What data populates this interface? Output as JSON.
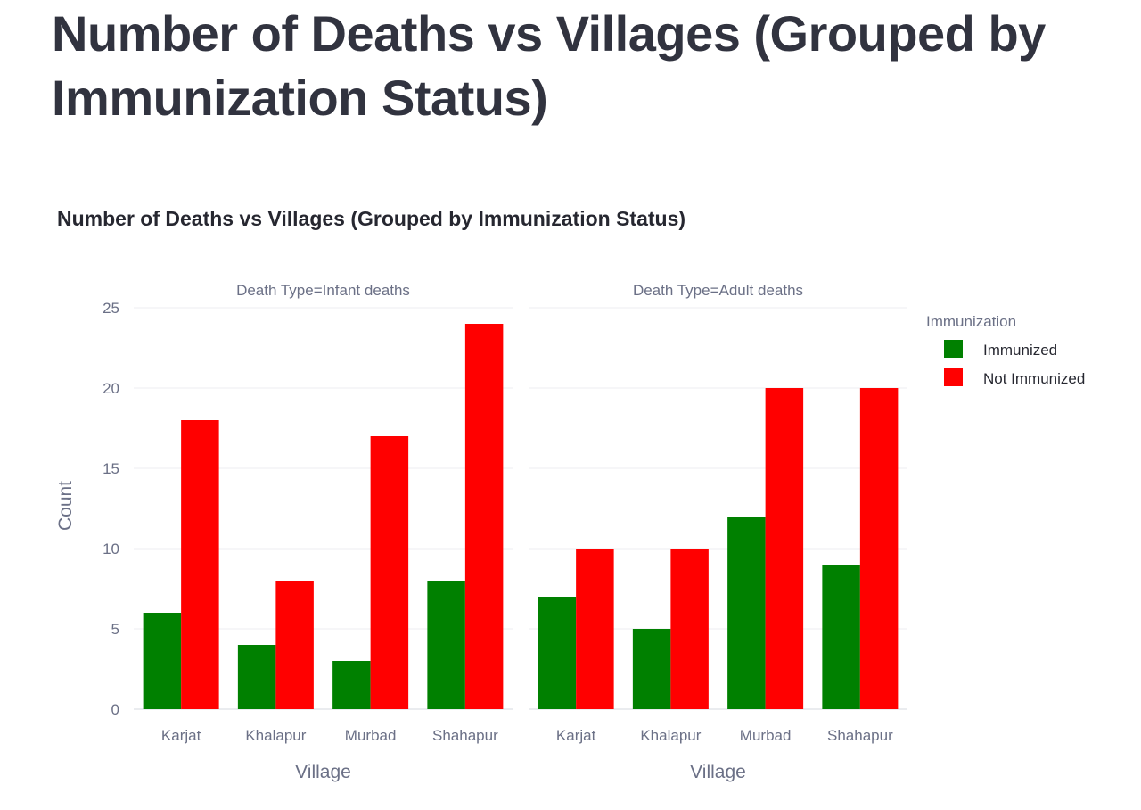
{
  "page": {
    "title": "Number of Deaths vs Villages (Grouped by Immunization Status)"
  },
  "chart_data": {
    "type": "bar",
    "title": "Number of Deaths vs Villages (Grouped by Immunization Status)",
    "ylabel": "Count",
    "xlabel": "Village",
    "ylim": [
      0,
      25
    ],
    "yticks": [
      0,
      5,
      10,
      15,
      20,
      25
    ],
    "grid": true,
    "legend": {
      "title": "Immunization",
      "placement": "top-right",
      "entries": [
        "Immunized",
        "Not Immunized"
      ]
    },
    "colors": {
      "Immunized": "#008000",
      "Not Immunized": "#ff0000"
    },
    "categories": [
      "Karjat",
      "Khalapur",
      "Murbad",
      "Shahapur"
    ],
    "facets": [
      {
        "title": "Death Type=Infant deaths",
        "series": [
          {
            "name": "Immunized",
            "values": [
              6,
              4,
              3,
              8
            ]
          },
          {
            "name": "Not Immunized",
            "values": [
              18,
              8,
              17,
              24
            ]
          }
        ]
      },
      {
        "title": "Death Type=Adult deaths",
        "series": [
          {
            "name": "Immunized",
            "values": [
              7,
              5,
              12,
              9
            ]
          },
          {
            "name": "Not Immunized",
            "values": [
              10,
              10,
              20,
              20
            ]
          }
        ]
      }
    ]
  }
}
